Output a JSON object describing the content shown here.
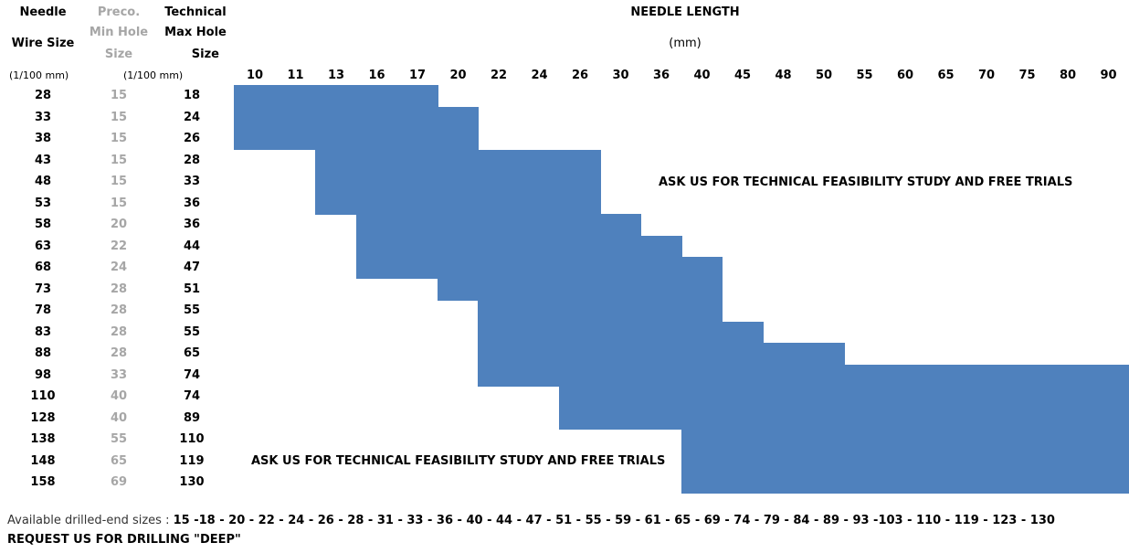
{
  "headers": {
    "wire_size": [
      "Needle",
      "Wire Size",
      "(1/100 mm)"
    ],
    "min_hole": [
      "Preco.",
      "Min Hole",
      "Size"
    ],
    "max_hole": [
      "Technical",
      "Max Hole",
      "Size"
    ],
    "hole_unit": "(1/100 mm)",
    "needle_length": "NEEDLE LENGTH",
    "needle_length_unit": "(mm)"
  },
  "lengths": [
    "10",
    "11",
    "13",
    "16",
    "17",
    "20",
    "22",
    "24",
    "26",
    "30",
    "36",
    "40",
    "45",
    "48",
    "50",
    "55",
    "60",
    "65",
    "70",
    "75",
    "80",
    "90"
  ],
  "rows": [
    {
      "wire": "28",
      "min": "15",
      "max": "18",
      "range": [
        0,
        4
      ]
    },
    {
      "wire": "33",
      "min": "15",
      "max": "24",
      "range": [
        0,
        5
      ]
    },
    {
      "wire": "38",
      "min": "15",
      "max": "26",
      "range": [
        0,
        5
      ]
    },
    {
      "wire": "43",
      "min": "15",
      "max": "28",
      "range": [
        2,
        8
      ]
    },
    {
      "wire": "48",
      "min": "15",
      "max": "33",
      "range": [
        2,
        8
      ]
    },
    {
      "wire": "53",
      "min": "15",
      "max": "36",
      "range": [
        2,
        8
      ]
    },
    {
      "wire": "58",
      "min": "20",
      "max": "36",
      "range": [
        3,
        9
      ]
    },
    {
      "wire": "63",
      "min": "22",
      "max": "44",
      "range": [
        3,
        10
      ]
    },
    {
      "wire": "68",
      "min": "24",
      "max": "47",
      "range": [
        3,
        11
      ]
    },
    {
      "wire": "73",
      "min": "28",
      "max": "51",
      "range": [
        5,
        11
      ]
    },
    {
      "wire": "78",
      "min": "28",
      "max": "55",
      "range": [
        6,
        11
      ]
    },
    {
      "wire": "83",
      "min": "28",
      "max": "55",
      "range": [
        6,
        12
      ]
    },
    {
      "wire": "88",
      "min": "28",
      "max": "65",
      "range": [
        6,
        14
      ]
    },
    {
      "wire": "98",
      "min": "33",
      "max": "74",
      "range": [
        6,
        21
      ]
    },
    {
      "wire": "110",
      "min": "40",
      "max": "74",
      "range": [
        8,
        21
      ]
    },
    {
      "wire": "128",
      "min": "40",
      "max": "89",
      "range": [
        8,
        21
      ]
    },
    {
      "wire": "138",
      "min": "55",
      "max": "110",
      "range": [
        11,
        21
      ]
    },
    {
      "wire": "148",
      "min": "65",
      "max": "119",
      "range": [
        11,
        21
      ]
    },
    {
      "wire": "158",
      "min": "69",
      "max": "130",
      "range": [
        11,
        21
      ]
    }
  ],
  "notes": {
    "upper": "ASK US FOR TECHNICAL FEASIBILITY STUDY AND FREE TRIALS",
    "lower": "ASK US FOR TECHNICAL FEASIBILITY STUDY AND FREE TRIALS"
  },
  "footer": {
    "sizes_label": "Available drilled-end sizes : ",
    "sizes_values": "15 -18 - 20 - 22 - 24 - 26 - 28 - 31 - 33 - 36 - 40 - 44 - 47 - 51 - 55 - 59 - 61 - 65 - 69 - 74 - 79 - 84 - 89 - 93 -103 - 110 - 119 - 123 - 130",
    "request": "REQUEST US FOR DRILLING \"DEEP\""
  },
  "colors": {
    "fill": "#4f81bd",
    "grey_text": "#a6a6a6"
  }
}
